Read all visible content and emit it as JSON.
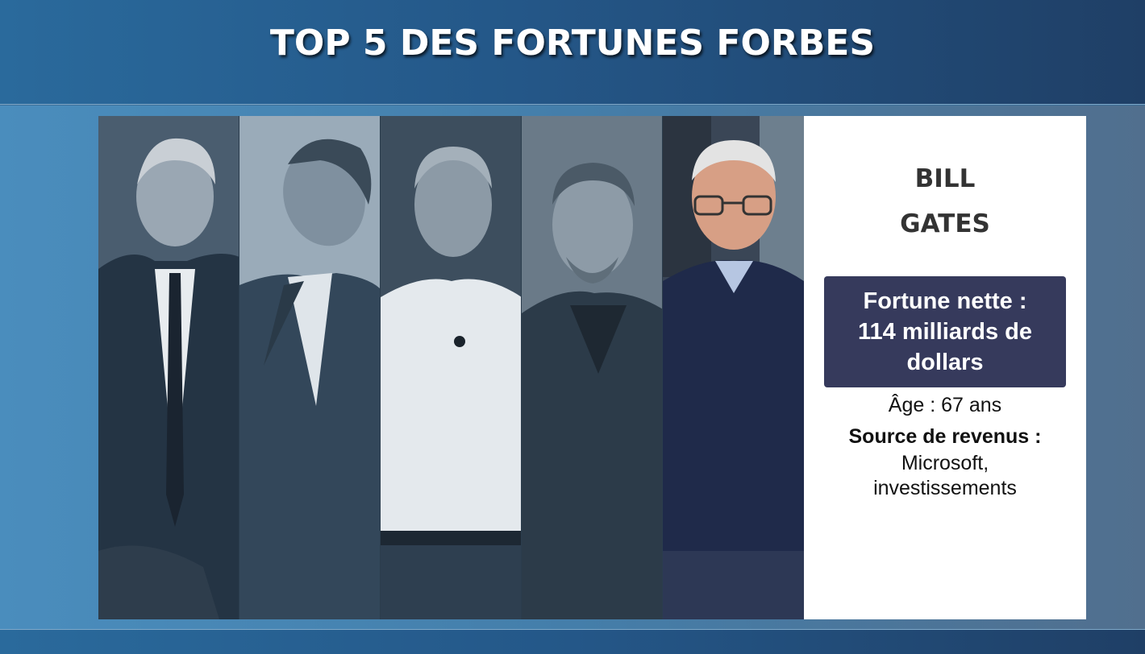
{
  "title": "TOP 5 DES FORTUNES FORBES",
  "portraits": [
    {
      "icon": "person-portrait-icon",
      "tone": "grey"
    },
    {
      "icon": "person-portrait-icon",
      "tone": "grey"
    },
    {
      "icon": "person-portrait-icon",
      "tone": "grey"
    },
    {
      "icon": "person-portrait-icon",
      "tone": "grey"
    },
    {
      "icon": "person-portrait-icon",
      "tone": "color"
    }
  ],
  "featured": {
    "first_name": "BILL",
    "last_name": "GATES",
    "fortune_line1": "Fortune nette :",
    "fortune_line2": "114 milliards de",
    "fortune_line3": "dollars",
    "age": "Âge : 67 ans",
    "source_label": "Source de revenus :",
    "source_line1": "Microsoft,",
    "source_line2": "investissements"
  },
  "colors": {
    "fortune_box": "#363a5c",
    "header": "#245788",
    "accent_bg": "#4a8dbd"
  }
}
